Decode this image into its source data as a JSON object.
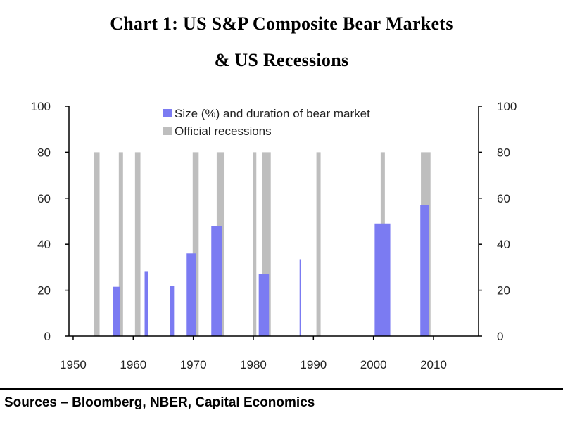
{
  "title_line1": "Chart 1: US S&P Composite Bear Markets",
  "title_line2": "& US Recessions",
  "sources": "Sources – Bloomberg, NBER, Capital Economics",
  "chart_data": {
    "type": "bar",
    "ylim": [
      0,
      100
    ],
    "yticks": [
      0,
      20,
      40,
      60,
      80,
      100
    ],
    "y2lim": [
      0,
      100
    ],
    "y2ticks": [
      0,
      20,
      40,
      60,
      80,
      100
    ],
    "xlim": [
      1949.3,
      2017.5
    ],
    "xticks": [
      1950,
      1960,
      1970,
      1980,
      1990,
      2000,
      2010
    ],
    "legend_position": "top-center",
    "colors": {
      "bear": "#7b7bf2",
      "recession": "#bebebe"
    },
    "series": [
      {
        "name": "Size (%) and duration of bear market",
        "bars": [
          {
            "start": 1956.6,
            "end": 1957.8,
            "value": 21.5
          },
          {
            "start": 1961.9,
            "end": 1962.5,
            "value": 28
          },
          {
            "start": 1966.1,
            "end": 1966.8,
            "value": 22
          },
          {
            "start": 1968.9,
            "end": 1970.4,
            "value": 36
          },
          {
            "start": 1973.0,
            "end": 1974.8,
            "value": 48
          },
          {
            "start": 1980.9,
            "end": 1982.6,
            "value": 27
          },
          {
            "start": 1987.7,
            "end": 1987.9,
            "value": 33.5
          },
          {
            "start": 2000.2,
            "end": 2002.8,
            "value": 49
          },
          {
            "start": 2007.8,
            "end": 2009.2,
            "value": 57
          }
        ]
      },
      {
        "name": "Official recessions",
        "bars": [
          {
            "start": 1953.5,
            "end": 1954.4,
            "value": 80
          },
          {
            "start": 1957.6,
            "end": 1958.3,
            "value": 80
          },
          {
            "start": 1960.3,
            "end": 1961.2,
            "value": 80
          },
          {
            "start": 1969.9,
            "end": 1970.9,
            "value": 80
          },
          {
            "start": 1973.9,
            "end": 1975.2,
            "value": 80
          },
          {
            "start": 1980.0,
            "end": 1980.5,
            "value": 80
          },
          {
            "start": 1981.5,
            "end": 1982.9,
            "value": 80
          },
          {
            "start": 1990.5,
            "end": 1991.2,
            "value": 80
          },
          {
            "start": 2001.2,
            "end": 2001.9,
            "value": 80
          },
          {
            "start": 2007.9,
            "end": 2009.5,
            "value": 80
          }
        ]
      }
    ]
  }
}
